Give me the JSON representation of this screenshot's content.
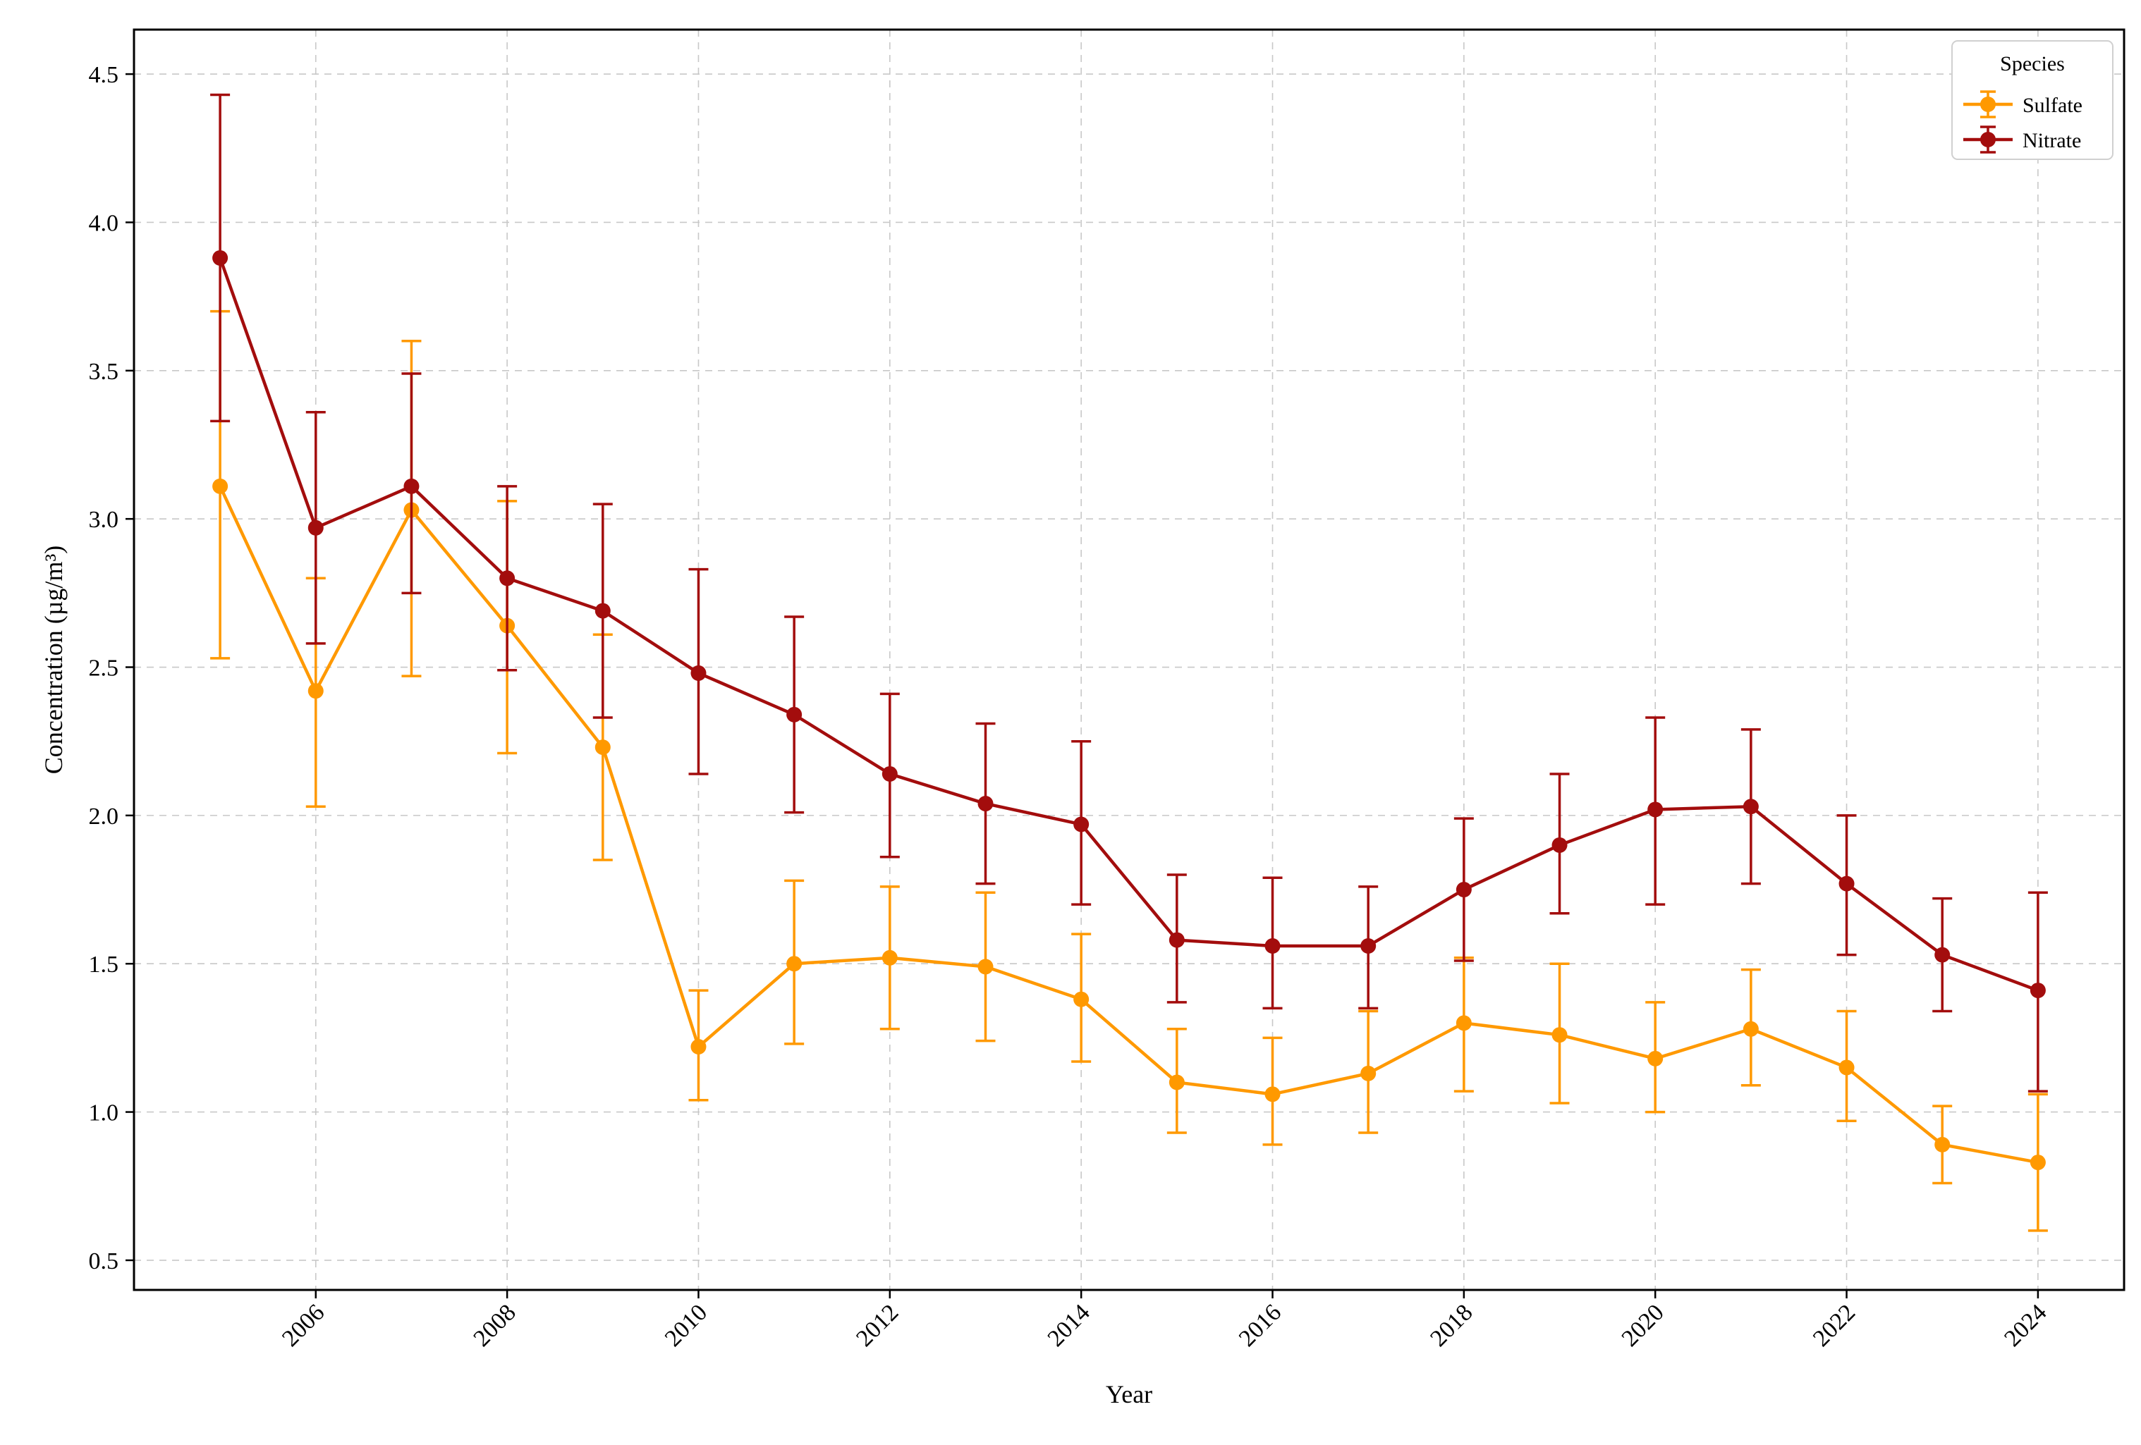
{
  "chart_data": {
    "type": "line",
    "title": "",
    "xlabel": "Year",
    "ylabel": "Concentration (µg/m³)",
    "xlim": [
      2004.1,
      2024.9
    ],
    "ylim": [
      0.4,
      4.65
    ],
    "x_ticks": [
      2006,
      2008,
      2010,
      2012,
      2014,
      2016,
      2018,
      2020,
      2022,
      2024
    ],
    "y_ticks": [
      0.5,
      1.0,
      1.5,
      2.0,
      2.5,
      3.0,
      3.5,
      4.0,
      4.5
    ],
    "y_tick_labels": [
      "0.5",
      "1.0",
      "1.5",
      "2.0",
      "2.5",
      "3.0",
      "3.5",
      "4.0",
      "4.5"
    ],
    "grid": true,
    "legend": {
      "title": "Species",
      "position": "top-right"
    },
    "x": [
      2005,
      2006,
      2007,
      2008,
      2009,
      2010,
      2011,
      2012,
      2013,
      2014,
      2015,
      2016,
      2017,
      2018,
      2019,
      2020,
      2021,
      2022,
      2023,
      2024
    ],
    "series": [
      {
        "name": "Sulfate",
        "color": "#ff9900",
        "values": [
          3.11,
          2.42,
          3.03,
          2.64,
          2.23,
          1.22,
          1.5,
          1.52,
          1.49,
          1.38,
          1.1,
          1.06,
          1.13,
          1.3,
          1.26,
          1.18,
          1.28,
          1.15,
          0.89,
          0.83
        ],
        "err_low": [
          2.53,
          2.03,
          2.47,
          2.21,
          1.85,
          1.04,
          1.23,
          1.28,
          1.24,
          1.17,
          0.93,
          0.89,
          0.93,
          1.07,
          1.03,
          1.0,
          1.09,
          0.97,
          0.76,
          0.6
        ],
        "err_high": [
          3.7,
          2.8,
          3.6,
          3.06,
          2.61,
          1.41,
          1.78,
          1.76,
          1.74,
          1.6,
          1.28,
          1.25,
          1.34,
          1.52,
          1.5,
          1.37,
          1.48,
          1.34,
          1.02,
          1.06
        ]
      },
      {
        "name": "Nitrate",
        "color": "#a30d0d",
        "values": [
          3.88,
          2.97,
          3.11,
          2.8,
          2.69,
          2.48,
          2.34,
          2.14,
          2.04,
          1.97,
          1.58,
          1.56,
          1.56,
          1.75,
          1.9,
          2.02,
          2.03,
          1.77,
          1.53,
          1.41
        ],
        "err_low": [
          3.33,
          2.58,
          2.75,
          2.49,
          2.33,
          2.14,
          2.01,
          1.86,
          1.77,
          1.7,
          1.37,
          1.35,
          1.35,
          1.51,
          1.67,
          1.7,
          1.77,
          1.53,
          1.34,
          1.07
        ],
        "err_high": [
          4.43,
          3.36,
          3.49,
          3.11,
          3.05,
          2.83,
          2.67,
          2.41,
          2.31,
          2.25,
          1.8,
          1.79,
          1.76,
          1.99,
          2.14,
          2.33,
          2.29,
          2.0,
          1.72,
          1.74
        ]
      }
    ]
  }
}
